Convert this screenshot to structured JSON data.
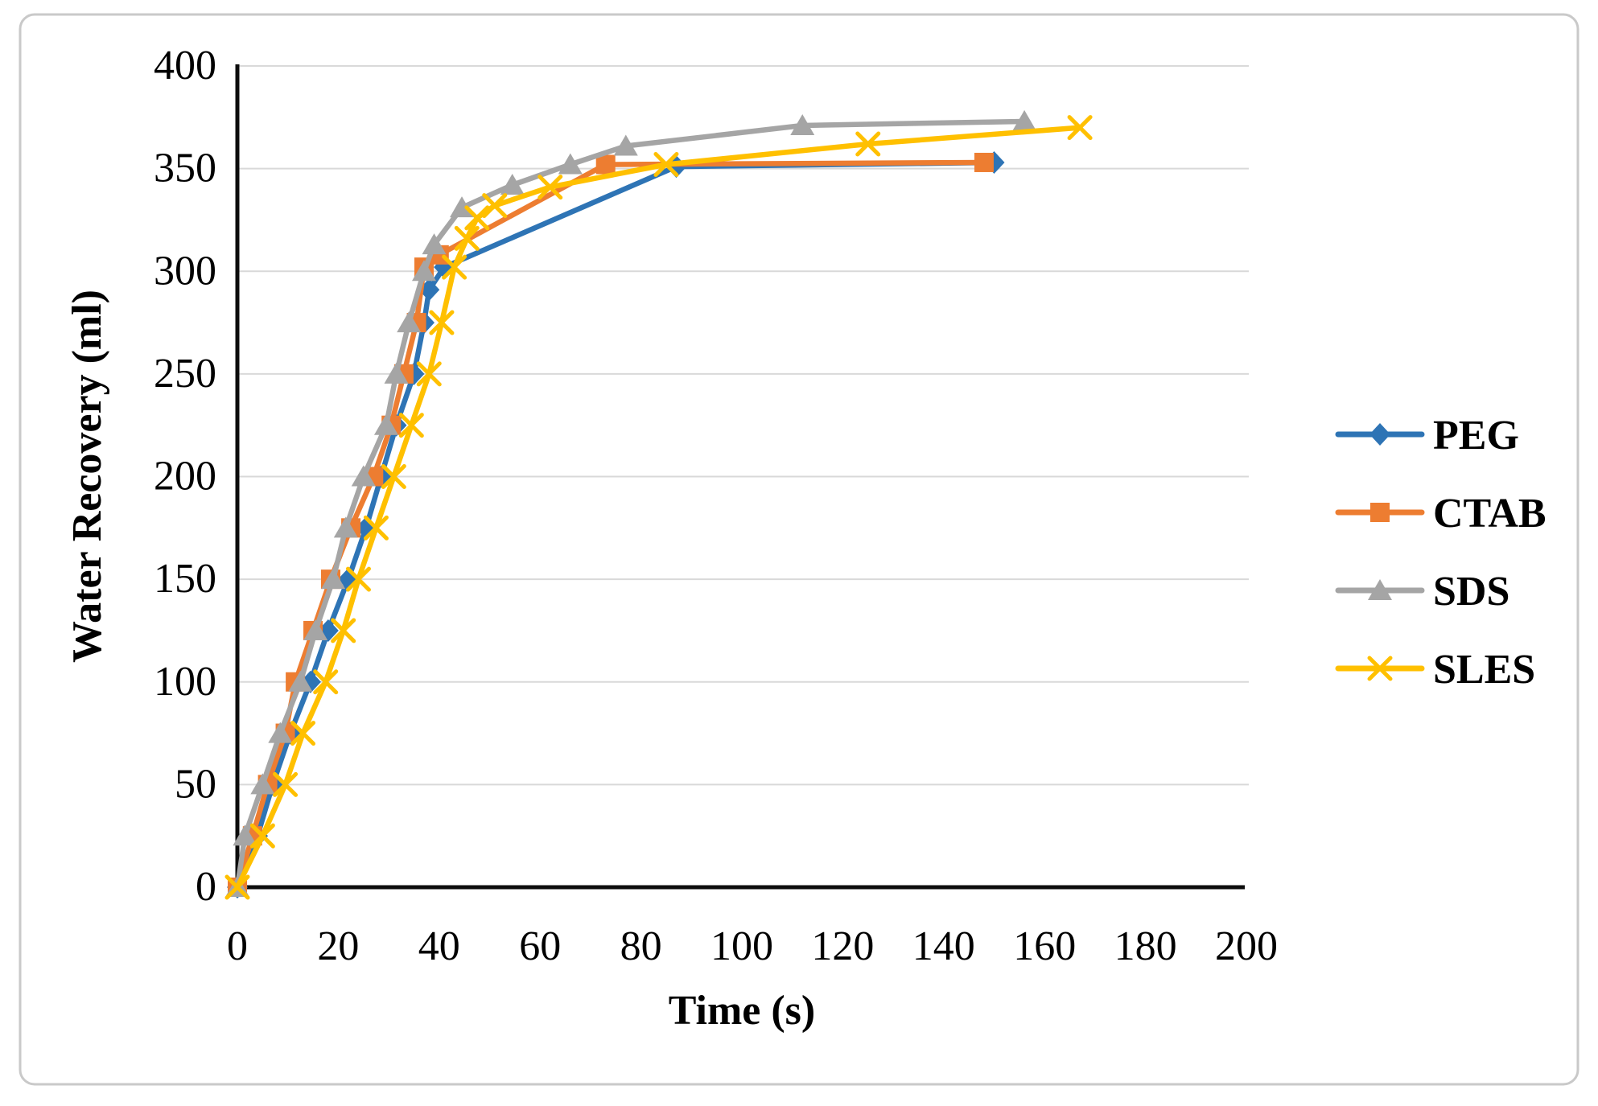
{
  "figure": {
    "border_color": "#c9c9c9",
    "background": "#ffffff"
  },
  "chart_data": {
    "type": "line",
    "title": "",
    "xlabel": "Time (s)",
    "ylabel": "Water Recovery (ml)",
    "xlim": [
      0,
      200
    ],
    "ylim": [
      0,
      400
    ],
    "x_ticks": [
      0,
      20,
      40,
      60,
      80,
      100,
      120,
      140,
      160,
      180,
      200
    ],
    "y_ticks": [
      0,
      50,
      100,
      150,
      200,
      250,
      300,
      350,
      400
    ],
    "grid": "horizontal",
    "gridline_color": "#d9d9d9",
    "axis_color": "#0d0d0d",
    "legend_position": "right",
    "series": [
      {
        "name": "PEG",
        "color": "#2E74B5",
        "marker": "diamond",
        "points": [
          [
            0,
            0
          ],
          [
            4,
            25
          ],
          [
            7,
            50
          ],
          [
            10.5,
            75
          ],
          [
            14.5,
            100
          ],
          [
            18,
            125
          ],
          [
            22,
            150
          ],
          [
            25.5,
            175
          ],
          [
            28.5,
            200
          ],
          [
            31.5,
            225
          ],
          [
            35,
            250
          ],
          [
            37,
            275
          ],
          [
            38,
            291
          ],
          [
            41,
            302
          ],
          [
            87,
            351
          ],
          [
            150,
            353
          ]
        ]
      },
      {
        "name": "CTAB",
        "color": "#ED7D31",
        "marker": "square",
        "points": [
          [
            0,
            0
          ],
          [
            3,
            25
          ],
          [
            6,
            50
          ],
          [
            9.5,
            75
          ],
          [
            11.5,
            100
          ],
          [
            15,
            125
          ],
          [
            18.5,
            150
          ],
          [
            22.5,
            175
          ],
          [
            27,
            200
          ],
          [
            30.5,
            225
          ],
          [
            33,
            250
          ],
          [
            35.5,
            275
          ],
          [
            37,
            302
          ],
          [
            40,
            308
          ],
          [
            73,
            352
          ],
          [
            148,
            353
          ]
        ]
      },
      {
        "name": "SDS",
        "color": "#A5A5A5",
        "marker": "triangle",
        "points": [
          [
            0,
            0
          ],
          [
            1.5,
            25
          ],
          [
            5,
            50
          ],
          [
            8.5,
            75
          ],
          [
            12.5,
            100
          ],
          [
            15.5,
            125
          ],
          [
            19,
            150
          ],
          [
            21.5,
            175
          ],
          [
            25,
            200
          ],
          [
            29.5,
            225
          ],
          [
            31.5,
            250
          ],
          [
            34,
            275
          ],
          [
            37,
            300
          ],
          [
            39,
            313
          ],
          [
            44.5,
            331
          ],
          [
            54.5,
            342
          ],
          [
            66,
            352
          ],
          [
            77,
            361
          ],
          [
            112,
            371
          ],
          [
            156,
            373
          ]
        ]
      },
      {
        "name": "SLES",
        "color": "#FFC000",
        "marker": "x",
        "points": [
          [
            0,
            0
          ],
          [
            5,
            25
          ],
          [
            9.5,
            50
          ],
          [
            13,
            75
          ],
          [
            17.5,
            100
          ],
          [
            21,
            125
          ],
          [
            24,
            150
          ],
          [
            27.5,
            175
          ],
          [
            31,
            200
          ],
          [
            34.5,
            225
          ],
          [
            38,
            250
          ],
          [
            40.5,
            275
          ],
          [
            43,
            302
          ],
          [
            45.5,
            316
          ],
          [
            47.5,
            326
          ],
          [
            51,
            332
          ],
          [
            62,
            341
          ],
          [
            85,
            352
          ],
          [
            125,
            362
          ],
          [
            167,
            370
          ]
        ]
      }
    ]
  }
}
